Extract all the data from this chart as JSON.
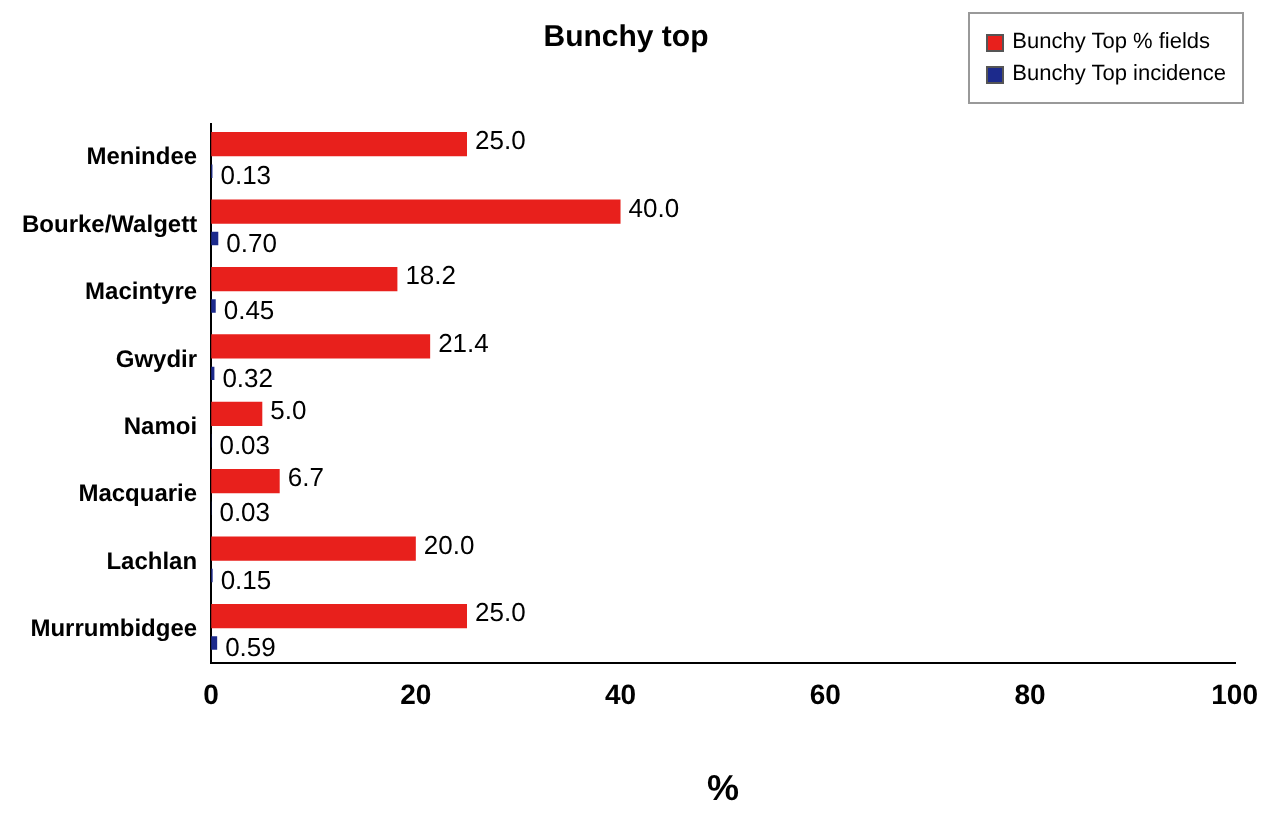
{
  "chart_data": {
    "type": "bar",
    "orientation": "horizontal",
    "title": "Bunchy top",
    "xlabel": "%",
    "categories": [
      "Menindee",
      "Bourke/Walgett",
      "Macintyre",
      "Gwydir",
      "Namoi",
      "Macquarie",
      "Lachlan",
      "Murrumbidgee"
    ],
    "series": [
      {
        "name": "Bunchy Top % fields",
        "color": "#e8201c",
        "values": [
          25.0,
          40.0,
          18.2,
          21.4,
          5.0,
          6.7,
          20.0,
          25.0
        ],
        "value_labels": [
          "25.0",
          "40.0",
          "18.2",
          "21.4",
          "5.0",
          "6.7",
          "20.0",
          "25.0"
        ]
      },
      {
        "name": "Bunchy Top incidence",
        "color": "#1c2a8c",
        "values": [
          0.13,
          0.7,
          0.45,
          0.32,
          0.03,
          0.03,
          0.15,
          0.59
        ],
        "value_labels": [
          "0.13",
          "0.70",
          "0.45",
          "0.32",
          "0.03",
          "0.03",
          "0.15",
          "0.59"
        ]
      }
    ],
    "xlim": [
      0,
      100
    ],
    "xticks": [
      0,
      20,
      40,
      60,
      80,
      100
    ],
    "grid": false,
    "legend": "top right"
  }
}
